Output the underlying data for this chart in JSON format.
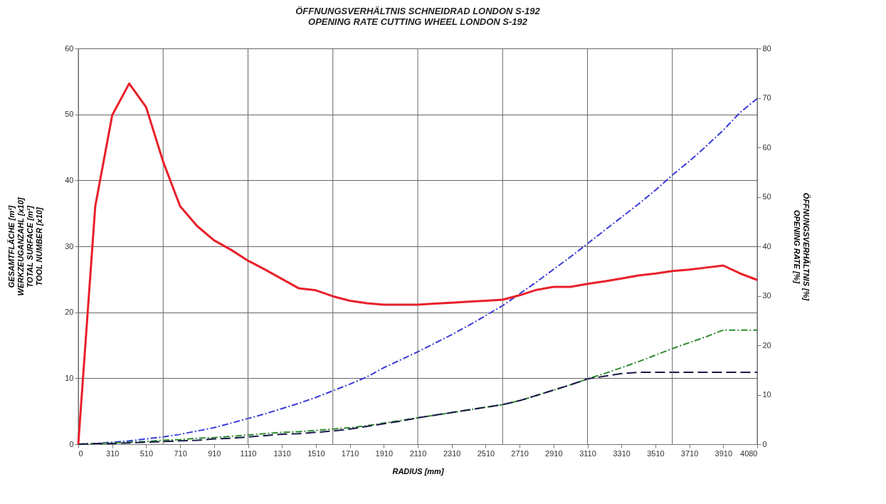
{
  "chart_data": {
    "type": "line",
    "title": "ÖFFNUNGSVERHÄLTNIS SCHNEIDRAD LONDON S-192\nOPENING RATE CUTTING WHEEL LONDON S-192",
    "xlabel": "RADIUS [mm]",
    "ylabel": "GESAMTFLÄCHE [m²]\nWERKZEUGANZAHL [x10]\nTOTAL SURFACE [m²]\nTOOL NUMBER [x10]",
    "y2label": "ÖFFNUNGSVERHÄLTNIS [%]\nOPENING RATE [%]",
    "categories": [
      "0",
      null,
      "310",
      null,
      "510",
      null,
      "710",
      null,
      "910",
      null,
      "1110",
      null,
      "1310",
      null,
      "1510",
      null,
      "1710",
      null,
      "1910",
      null,
      "2110",
      null,
      "2310",
      null,
      "2510",
      null,
      "2710",
      null,
      "2910",
      null,
      "3110",
      null,
      "3310",
      null,
      "3510",
      null,
      "3710",
      null,
      "3910",
      null,
      "4080"
    ],
    "series": [
      {
        "color": "#3a3ad8",
        "line_style": "dotted",
        "values": [
          0,
          0.1,
          0.3,
          0.5,
          0.8,
          1.1,
          1.5,
          2.0,
          2.5,
          3.2,
          3.9,
          4.6,
          5.4,
          6.2,
          7.1,
          8.1,
          9.1,
          10.2,
          11.6,
          12.8,
          14.0,
          15.3,
          16.6,
          18.0,
          19.5,
          21.0,
          22.8,
          24.6,
          26.5,
          28.4,
          30.4,
          32.4,
          34.4,
          36.4,
          38.5,
          40.8,
          42.9,
          45.2,
          47.6,
          50.3,
          52.4
        ]
      },
      {
        "color": "#2e8b2e",
        "line_style": "dotted",
        "values": [
          0,
          0.1,
          0.2,
          0.3,
          0.4,
          0.6,
          0.7,
          0.9,
          1.0,
          1.2,
          1.4,
          1.6,
          1.8,
          1.9,
          2.1,
          2.3,
          2.5,
          2.8,
          3.2,
          3.6,
          4.0,
          4.4,
          4.8,
          5.2,
          5.6,
          6.0,
          6.6,
          7.4,
          8.2,
          9.0,
          9.9,
          10.7,
          11.6,
          12.5,
          13.5,
          14.5,
          15.4,
          16.3,
          17.3,
          17.3,
          17.3
        ]
      },
      {
        "color": "#1a1a4a",
        "line_style": "dashed",
        "values": [
          0,
          0.1,
          0.1,
          0.2,
          0.3,
          0.4,
          0.5,
          0.6,
          0.8,
          0.9,
          1.1,
          1.3,
          1.5,
          1.6,
          1.8,
          2.0,
          2.3,
          2.7,
          3.1,
          3.5,
          4.0,
          4.4,
          4.8,
          5.2,
          5.6,
          6.0,
          6.6,
          7.4,
          8.2,
          9.0,
          9.9,
          10.3,
          10.7,
          10.9,
          10.9,
          10.9,
          10.9,
          10.9,
          10.9,
          10.9,
          10.9
        ]
      },
      {
        "color": "#e8202a",
        "line_style": "solid",
        "axis": "y2",
        "values": [
          0,
          48.1,
          66.5,
          72.9,
          68.1,
          57.1,
          48.1,
          44.1,
          41.2,
          39.3,
          37.1,
          35.3,
          33.4,
          31.5,
          31.1,
          29.9,
          29.0,
          28.5,
          28.2,
          28.2,
          28.2,
          28.4,
          28.6,
          28.8,
          29.0,
          29.2,
          30.1,
          31.2,
          31.8,
          31.8,
          32.4,
          32.9,
          33.5,
          34.1,
          34.5,
          35.0,
          35.3,
          35.7,
          36.1,
          34.5,
          33.2
        ]
      }
    ],
    "ylim": [
      0,
      60
    ],
    "yticks": [
      0,
      10,
      20,
      30,
      40,
      50,
      60
    ],
    "y2lim": [
      0,
      80
    ],
    "y2ticks": [
      0,
      10,
      20,
      30,
      40,
      50,
      60,
      70,
      80
    ],
    "grid": true,
    "marker": "none"
  }
}
